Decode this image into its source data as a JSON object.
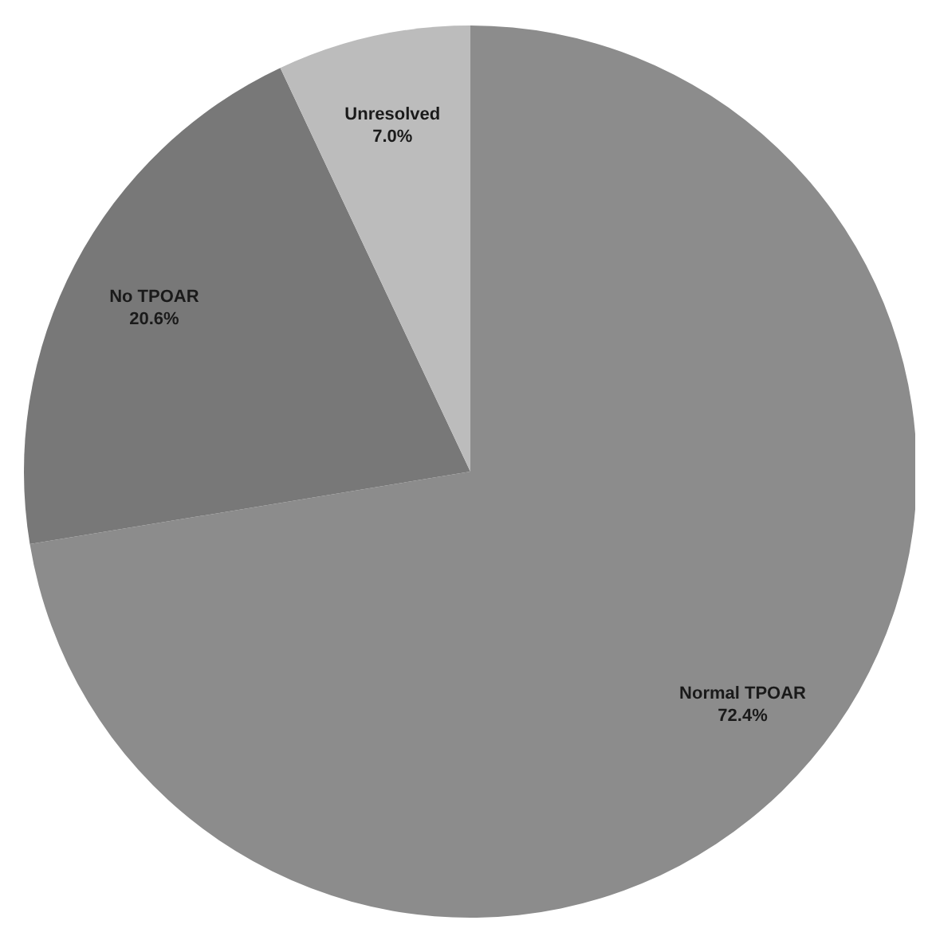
{
  "chart_data": {
    "type": "pie",
    "categories": [
      "Normal TPOAR",
      "No TPOAR",
      "Unresolved"
    ],
    "values": [
      72.4,
      20.6,
      7.0
    ],
    "colors": [
      "#8c8c8c",
      "#787878",
      "#bcbcbc"
    ],
    "value_labels": [
      "72.4%",
      "20.6%",
      "7.0%"
    ],
    "legend": false
  }
}
